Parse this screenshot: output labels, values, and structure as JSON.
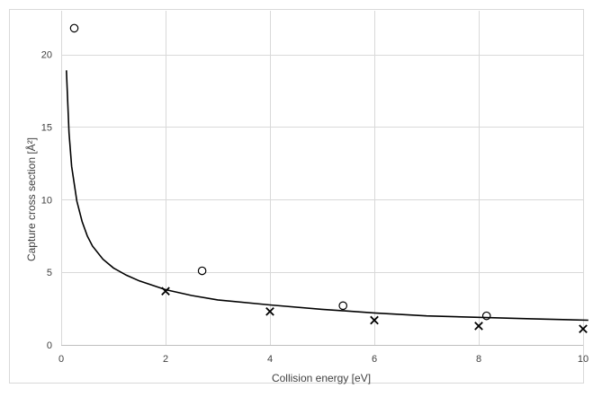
{
  "chart_data": {
    "type": "scatter",
    "title": "",
    "xlabel": "Collision energy [eV]",
    "ylabel": "Capture cross section [Å²]",
    "xlim": [
      0,
      10
    ],
    "ylim": [
      0,
      23
    ],
    "x_ticks": [
      "0",
      "2",
      "4",
      "6",
      "8",
      "10"
    ],
    "y_ticks": [
      "0",
      "5",
      "10",
      "15",
      "20"
    ],
    "grid": true,
    "legend": "none",
    "series": [
      {
        "marker": "circle",
        "x": [
          0.25,
          2.7,
          5.4,
          8.15
        ],
        "y": [
          21.8,
          5.1,
          2.7,
          2.0
        ]
      },
      {
        "marker": "cross",
        "x": [
          2.0,
          4.0,
          6.0,
          8.0,
          10.0
        ],
        "y": [
          3.7,
          2.3,
          1.7,
          1.3,
          1.1
        ]
      },
      {
        "marker": "line",
        "x": [
          0.1,
          0.15,
          0.2,
          0.3,
          0.4,
          0.5,
          0.6,
          0.8,
          1.0,
          1.25,
          1.5,
          2.0,
          2.5,
          3.0,
          4.0,
          5.0,
          6.0,
          7.0,
          8.0,
          9.0,
          10.1
        ],
        "y": [
          18.9,
          14.6,
          12.3,
          9.9,
          8.5,
          7.5,
          6.8,
          5.9,
          5.3,
          4.8,
          4.4,
          3.8,
          3.4,
          3.1,
          2.75,
          2.45,
          2.2,
          2.0,
          1.9,
          1.8,
          1.7
        ]
      }
    ],
    "colors": {
      "grid": "#d9d9d9",
      "data": "#000000",
      "axis": "#bfbfbf",
      "text": "#404040"
    }
  }
}
